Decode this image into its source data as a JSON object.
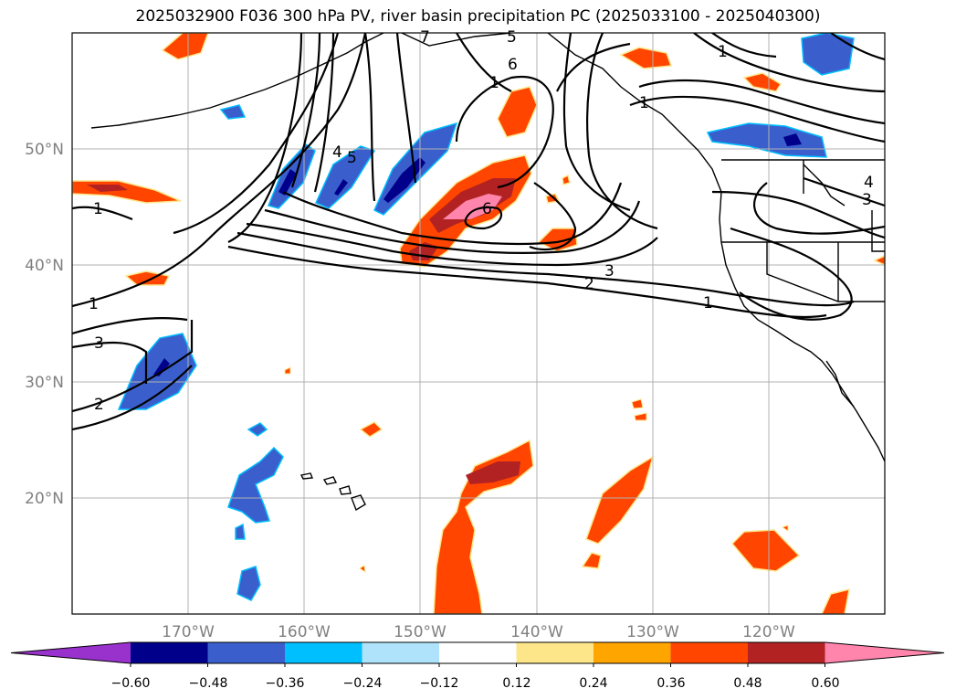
{
  "title": "2025032900 F036 300 hPa PV, river basin precipitation PC (2025033100 - 2025040300)",
  "map": {
    "lon_range": [
      -180,
      -110
    ],
    "lat_range": [
      10,
      60
    ],
    "lat_ticks": [
      {
        "value": 20,
        "label": "20°N"
      },
      {
        "value": 30,
        "label": "30°N"
      },
      {
        "value": 40,
        "label": "40°N"
      },
      {
        "value": 50,
        "label": "50°N"
      }
    ],
    "lon_ticks": [
      {
        "value": -170,
        "label": "170°W"
      },
      {
        "value": -160,
        "label": "160°W"
      },
      {
        "value": -150,
        "label": "150°W"
      },
      {
        "value": -140,
        "label": "140°W"
      },
      {
        "value": -130,
        "label": "130°W"
      },
      {
        "value": -120,
        "label": "120°W"
      }
    ],
    "gridlines": true,
    "contour_field": "300 hPa PV",
    "contour_labels": [
      "1",
      "1",
      "1",
      "1",
      "1",
      "1",
      "2",
      "2",
      "3",
      "3",
      "3",
      "4",
      "4",
      "5",
      "5",
      "6",
      "6",
      "7"
    ]
  },
  "colorbar": {
    "ticks": [
      "−0.60",
      "−0.48",
      "−0.36",
      "−0.24",
      "−0.12",
      "0.12",
      "0.24",
      "0.36",
      "0.48",
      "0.60"
    ],
    "colors": [
      "#9932cc",
      "#00008b",
      "#3a5fcd",
      "#00bfff",
      "#afe3fb",
      "#ffffff",
      "#fde68a",
      "#ffa500",
      "#ff4500",
      "#b22222",
      "#ff85ad"
    ]
  }
}
